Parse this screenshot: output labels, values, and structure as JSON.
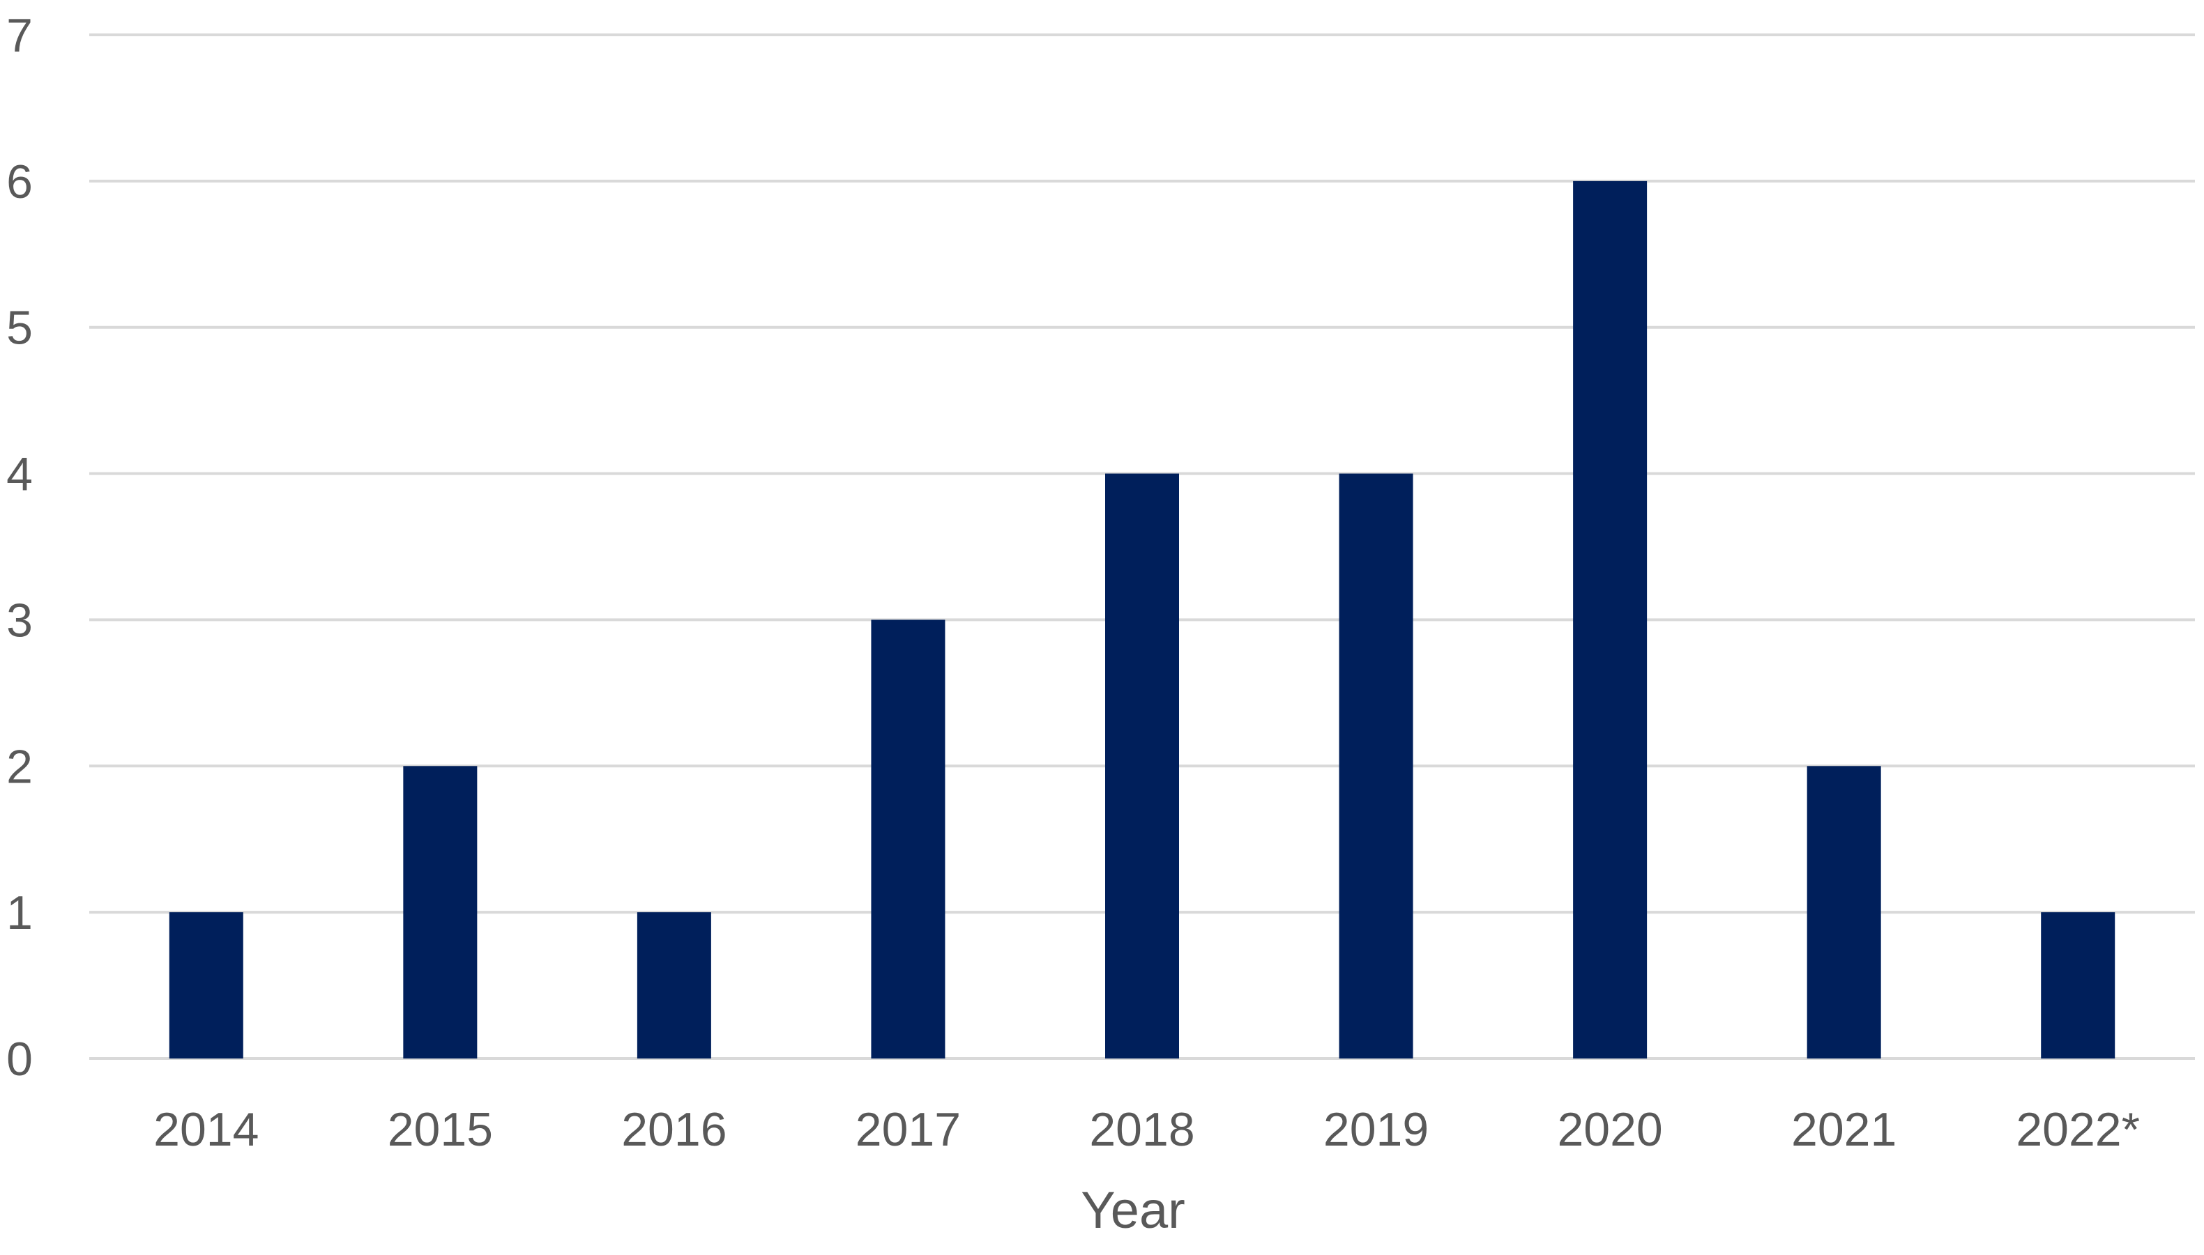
{
  "chart_data": {
    "type": "bar",
    "title": "",
    "xlabel": "Year",
    "ylabel": "",
    "categories": [
      "2014",
      "2015",
      "2016",
      "2017",
      "2018",
      "2019",
      "2020",
      "2021",
      "2022*"
    ],
    "values": [
      1,
      2,
      1,
      3,
      4,
      4,
      6,
      2,
      1
    ],
    "ylim": [
      0,
      7
    ],
    "yticks": [
      "0",
      "1",
      "2",
      "3",
      "4",
      "5",
      "6",
      "7"
    ],
    "grid": true,
    "legend": "none",
    "bar_color": "#001F5B",
    "grid_color": "#D9D9D9",
    "text_color": "#595959"
  }
}
